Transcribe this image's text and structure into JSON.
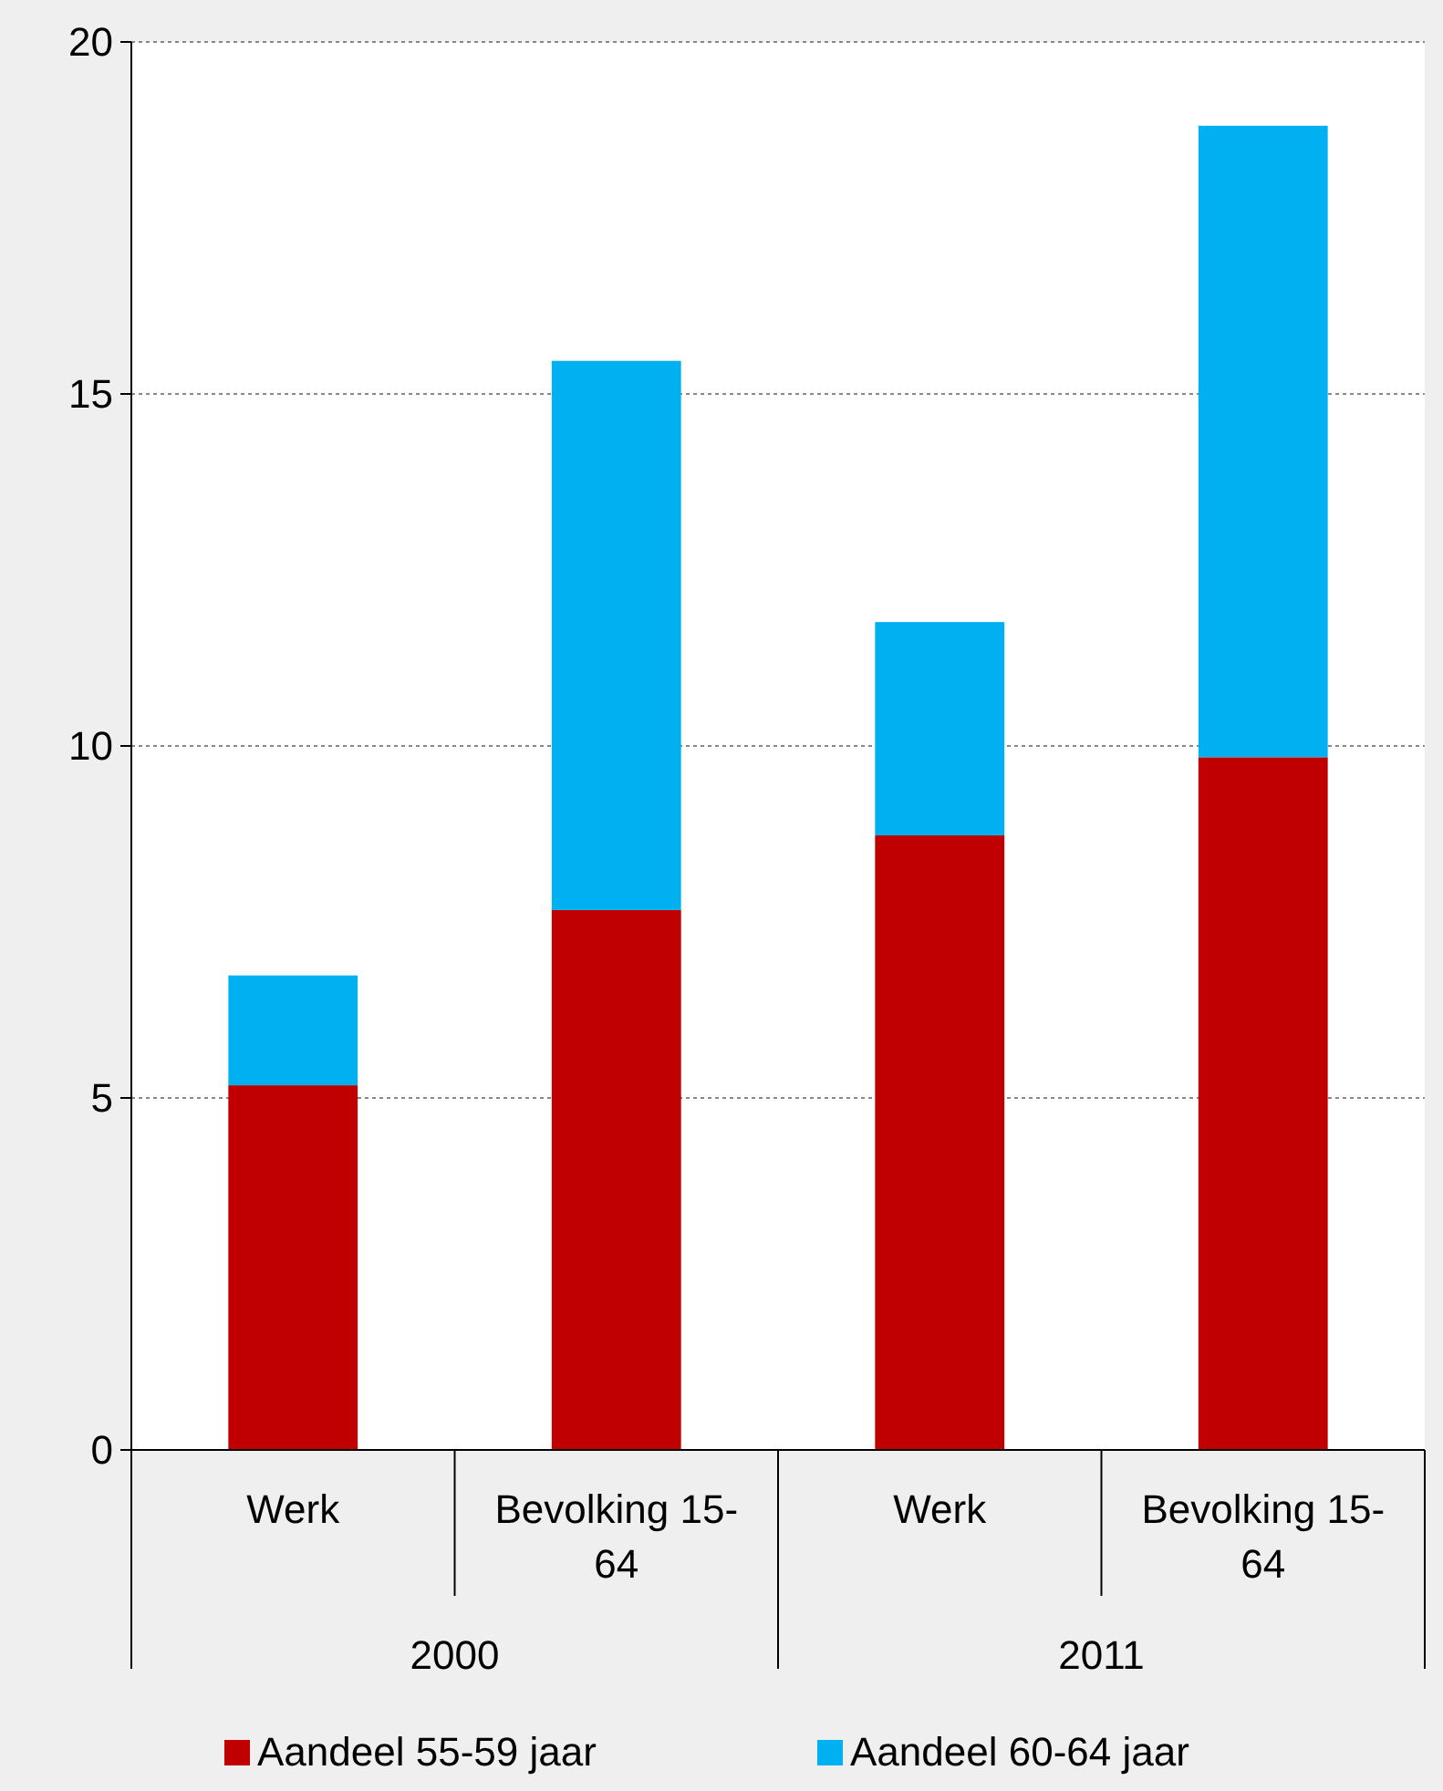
{
  "chart_data": {
    "type": "bar",
    "stacked": true,
    "categories": [
      "Werk",
      "Bevolking 15-64",
      "Werk",
      "Bevolking 15-64"
    ],
    "annotations": [
      "2000",
      "2011"
    ],
    "series": [
      {
        "name": "Aandeel 55-59 jaar",
        "color": "#c00000",
        "values": [
          5.18,
          7.67,
          8.73,
          9.84
        ]
      },
      {
        "name": "Aandeel 60-64 jaar",
        "color": "#00b0f0",
        "values": [
          1.56,
          7.8,
          3.03,
          8.97
        ]
      }
    ],
    "ylim": [
      0,
      20
    ],
    "yticks": [
      0,
      5,
      10,
      15,
      20
    ],
    "grid": "y",
    "legend": "bottom"
  }
}
